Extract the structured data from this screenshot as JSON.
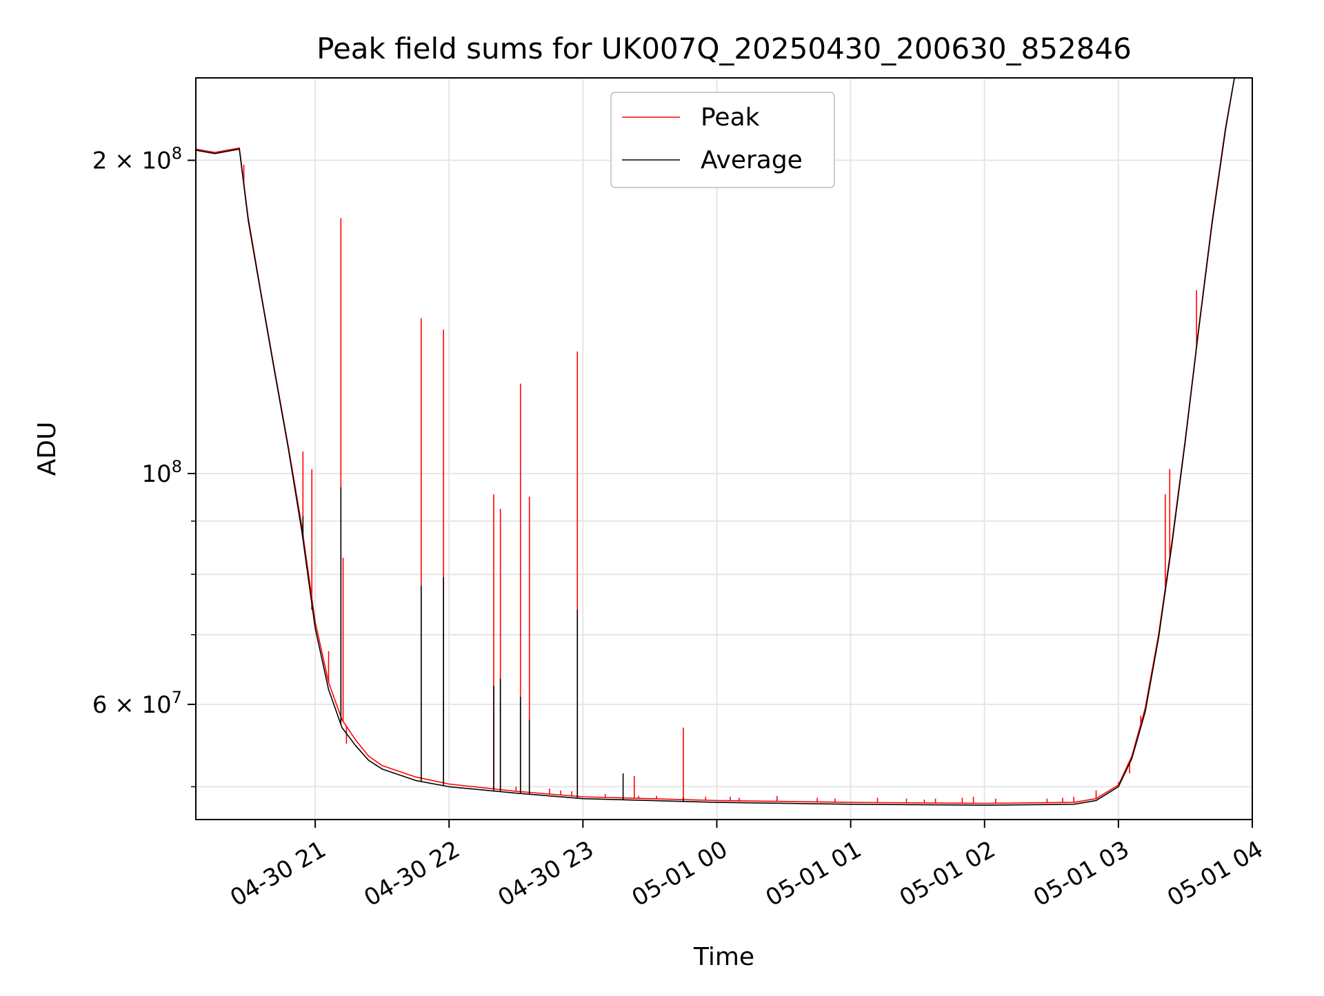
{
  "chart_data": {
    "type": "line",
    "title": "Peak field sums for UK007Q_20250430_200630_852846",
    "xlabel": "Time",
    "ylabel": "ADU",
    "yscale": "log",
    "xlim": [
      "2025-04-30 20:06:30",
      "2025-05-01 04:00:00"
    ],
    "ylim": [
      46500000,
      240000000
    ],
    "grid": true,
    "legend_position": "top-center",
    "x_ticks": [
      {
        "t": "2025-04-30 21:00",
        "label": "04-30 21"
      },
      {
        "t": "2025-04-30 22:00",
        "label": "04-30 22"
      },
      {
        "t": "2025-04-30 23:00",
        "label": "04-30 23"
      },
      {
        "t": "2025-05-01 00:00",
        "label": "05-01 00"
      },
      {
        "t": "2025-05-01 01:00",
        "label": "05-01 01"
      },
      {
        "t": "2025-05-01 02:00",
        "label": "05-01 02"
      },
      {
        "t": "2025-05-01 03:00",
        "label": "05-01 03"
      },
      {
        "t": "2025-05-01 04:00",
        "label": "05-01 04"
      }
    ],
    "y_major_ticks": [
      {
        "value": 200000000,
        "base": "2 × 10",
        "exp": "8"
      },
      {
        "value": 100000000,
        "base": "10",
        "exp": "8"
      },
      {
        "value": 60000000,
        "base": "6 × 10",
        "exp": "7"
      }
    ],
    "y_minor_ticks": [
      50000000,
      70000000,
      80000000,
      90000000
    ],
    "series": [
      {
        "name": "Peak",
        "color": "#ff0000",
        "baseline": [
          [
            "2025-04-30 20:06:30",
            205000000
          ],
          [
            "2025-04-30 20:15:00",
            203500000
          ],
          [
            "2025-04-30 20:26:00",
            205500000
          ],
          [
            "2025-04-30 20:30:00",
            176000000
          ],
          [
            "2025-04-30 20:36:00",
            148000000
          ],
          [
            "2025-04-30 20:42:00",
            125000000
          ],
          [
            "2025-04-30 20:48:00",
            106000000
          ],
          [
            "2025-04-30 20:54:00",
            89000000
          ],
          [
            "2025-04-30 21:00:00",
            72000000
          ],
          [
            "2025-04-30 21:06:00",
            63000000
          ],
          [
            "2025-04-30 21:12:00",
            58000000
          ],
          [
            "2025-04-30 21:18:00",
            55500000
          ],
          [
            "2025-04-30 21:24:00",
            53500000
          ],
          [
            "2025-04-30 21:30:00",
            52400000
          ],
          [
            "2025-04-30 21:45:00",
            51100000
          ],
          [
            "2025-04-30 22:00:00",
            50300000
          ],
          [
            "2025-04-30 22:30:00",
            49500000
          ],
          [
            "2025-04-30 23:00:00",
            48900000
          ],
          [
            "2025-05-01 00:00:00",
            48500000
          ],
          [
            "2025-05-01 01:00:00",
            48300000
          ],
          [
            "2025-05-01 02:00:00",
            48200000
          ],
          [
            "2025-05-01 02:40:00",
            48300000
          ],
          [
            "2025-05-01 02:50:00",
            48700000
          ],
          [
            "2025-05-01 03:00:00",
            50200000
          ],
          [
            "2025-05-01 03:06:00",
            53500000
          ],
          [
            "2025-05-01 03:12:00",
            59500000
          ],
          [
            "2025-05-01 03:18:00",
            70000000
          ],
          [
            "2025-05-01 03:24:00",
            86000000
          ],
          [
            "2025-05-01 03:30:00",
            108000000
          ],
          [
            "2025-05-01 03:36:00",
            138000000
          ],
          [
            "2025-05-01 03:42:00",
            175000000
          ],
          [
            "2025-05-01 03:48:00",
            215000000
          ],
          [
            "2025-05-01 03:52:00",
            240000000
          ],
          [
            "2025-05-01 04:00:00",
            240000000
          ]
        ],
        "spikes": [
          [
            "2025-04-30 20:28:00",
            198000000
          ],
          [
            "2025-04-30 20:54:30",
            105000000
          ],
          [
            "2025-04-30 20:58:30",
            101000000
          ],
          [
            "2025-04-30 21:06:00",
            67500000
          ],
          [
            "2025-04-30 21:11:30",
            176000000
          ],
          [
            "2025-04-30 21:12:30",
            83000000
          ],
          [
            "2025-04-30 21:14:00",
            55000000
          ],
          [
            "2025-04-30 21:34:00",
            52000000
          ],
          [
            "2025-04-30 21:47:30",
            141000000
          ],
          [
            "2025-04-30 21:57:30",
            137500000
          ],
          [
            "2025-04-30 22:20:00",
            95500000
          ],
          [
            "2025-04-30 22:23:00",
            92500000
          ],
          [
            "2025-04-30 22:30:00",
            50000000
          ],
          [
            "2025-04-30 22:32:00",
            122000000
          ],
          [
            "2025-04-30 22:36:00",
            95000000
          ],
          [
            "2025-04-30 22:45:00",
            49800000
          ],
          [
            "2025-04-30 22:50:00",
            49600000
          ],
          [
            "2025-04-30 22:55:00",
            49500000
          ],
          [
            "2025-04-30 22:57:30",
            131000000
          ],
          [
            "2025-04-30 23:10:00",
            49200000
          ],
          [
            "2025-04-30 23:23:00",
            51200000
          ],
          [
            "2025-04-30 23:25:00",
            49000000
          ],
          [
            "2025-04-30 23:33:00",
            49000000
          ],
          [
            "2025-04-30 23:45:00",
            57000000
          ],
          [
            "2025-04-30 23:55:00",
            48900000
          ],
          [
            "2025-05-01 00:06:00",
            48900000
          ],
          [
            "2025-05-01 00:10:00",
            48800000
          ],
          [
            "2025-05-01 00:27:00",
            49000000
          ],
          [
            "2025-05-01 00:45:00",
            48800000
          ],
          [
            "2025-05-01 00:53:00",
            48700000
          ],
          [
            "2025-05-01 01:12:00",
            48800000
          ],
          [
            "2025-05-01 01:25:00",
            48700000
          ],
          [
            "2025-05-01 01:33:00",
            48600000
          ],
          [
            "2025-05-01 01:38:00",
            48700000
          ],
          [
            "2025-05-01 01:50:00",
            48800000
          ],
          [
            "2025-05-01 01:55:00",
            48900000
          ],
          [
            "2025-05-01 02:05:00",
            48700000
          ],
          [
            "2025-05-01 02:28:00",
            48700000
          ],
          [
            "2025-05-01 02:35:00",
            48800000
          ],
          [
            "2025-05-01 02:40:00",
            48900000
          ],
          [
            "2025-05-01 02:50:00",
            49600000
          ],
          [
            "2025-05-01 03:00:00",
            50500000
          ],
          [
            "2025-05-01 03:05:00",
            51500000
          ],
          [
            "2025-05-01 03:10:00",
            58500000
          ],
          [
            "2025-05-01 03:14:00",
            63000000
          ],
          [
            "2025-05-01 03:21:00",
            95500000
          ],
          [
            "2025-05-01 03:23:00",
            101000000
          ],
          [
            "2025-05-01 03:35:00",
            150000000
          ]
        ]
      },
      {
        "name": "Average",
        "color": "#000000",
        "baseline": [
          [
            "2025-04-30 20:06:30",
            204500000
          ],
          [
            "2025-04-30 20:15:00",
            203000000
          ],
          [
            "2025-04-30 20:26:00",
            205000000
          ],
          [
            "2025-04-30 20:30:00",
            175000000
          ],
          [
            "2025-04-30 20:36:00",
            147500000
          ],
          [
            "2025-04-30 20:42:00",
            124500000
          ],
          [
            "2025-04-30 20:48:00",
            105500000
          ],
          [
            "2025-04-30 20:54:00",
            88000000
          ],
          [
            "2025-04-30 21:00:00",
            71000000
          ],
          [
            "2025-04-30 21:06:00",
            62000000
          ],
          [
            "2025-04-30 21:12:00",
            57000000
          ],
          [
            "2025-04-30 21:18:00",
            54800000
          ],
          [
            "2025-04-30 21:24:00",
            53000000
          ],
          [
            "2025-04-30 21:30:00",
            52000000
          ],
          [
            "2025-04-30 21:45:00",
            50700000
          ],
          [
            "2025-04-30 22:00:00",
            50000000
          ],
          [
            "2025-04-30 22:30:00",
            49300000
          ],
          [
            "2025-04-30 23:00:00",
            48700000
          ],
          [
            "2025-05-01 00:00:00",
            48300000
          ],
          [
            "2025-05-01 01:00:00",
            48100000
          ],
          [
            "2025-05-01 02:00:00",
            48000000
          ],
          [
            "2025-05-01 02:40:00",
            48100000
          ],
          [
            "2025-05-01 02:50:00",
            48500000
          ],
          [
            "2025-05-01 03:00:00",
            50000000
          ],
          [
            "2025-05-01 03:06:00",
            53200000
          ],
          [
            "2025-05-01 03:12:00",
            59000000
          ],
          [
            "2025-05-01 03:18:00",
            69500000
          ],
          [
            "2025-05-01 03:24:00",
            85500000
          ],
          [
            "2025-05-01 03:30:00",
            107500000
          ],
          [
            "2025-05-01 03:36:00",
            137500000
          ],
          [
            "2025-05-01 03:42:00",
            174000000
          ],
          [
            "2025-05-01 03:48:00",
            214000000
          ],
          [
            "2025-05-01 03:52:00",
            240000000
          ],
          [
            "2025-05-01 04:00:00",
            240000000
          ]
        ],
        "spikes": [
          [
            "2025-04-30 20:54:30",
            91000000
          ],
          [
            "2025-04-30 20:58:30",
            74000000
          ],
          [
            "2025-04-30 21:11:30",
            97000000
          ],
          [
            "2025-04-30 21:47:30",
            78000000
          ],
          [
            "2025-04-30 21:57:30",
            79500000
          ],
          [
            "2025-04-30 22:20:00",
            62500000
          ],
          [
            "2025-04-30 22:23:00",
            63500000
          ],
          [
            "2025-04-30 22:32:00",
            61000000
          ],
          [
            "2025-04-30 22:36:00",
            58000000
          ],
          [
            "2025-04-30 22:57:30",
            74000000
          ],
          [
            "2025-04-30 23:18:00",
            51500000
          ],
          [
            "2025-04-30 23:45:00",
            48800000
          ],
          [
            "2025-05-01 03:21:00",
            77000000
          ]
        ]
      }
    ]
  }
}
